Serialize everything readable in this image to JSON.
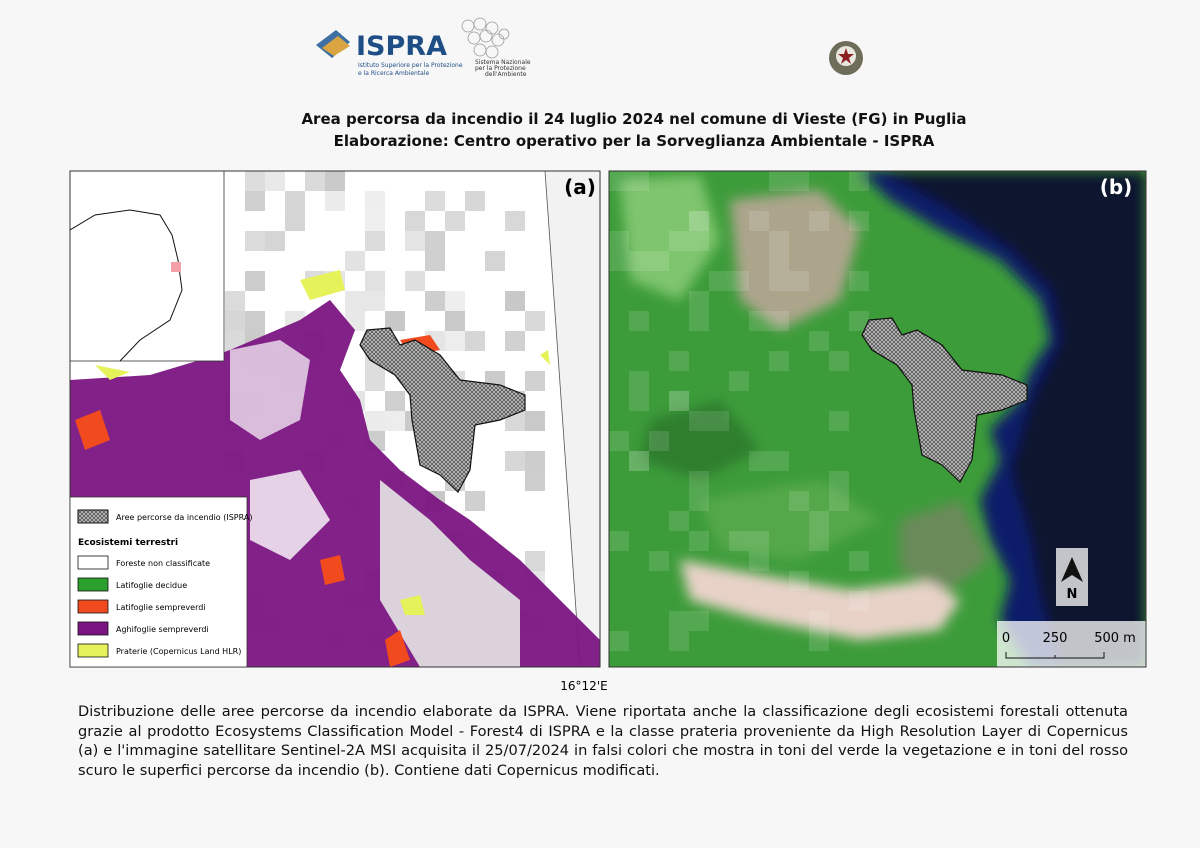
{
  "header": {
    "logo_ispra": "ISPRA",
    "logo_ispra_sub": [
      "Istituto Superiore per la Protezione",
      "e la Ricerca Ambientale"
    ],
    "logo_snpa": [
      "Sistema Nazionale",
      "per la Protezione",
      "dell'Ambiente"
    ]
  },
  "title": [
    "Area percorsa da incendio il 24 luglio 2024 nel comune di Vieste (FG) in Puglia",
    "Elaborazione: Centro operativo per la Sorveglianza Ambientale - ISPRA"
  ],
  "panels": {
    "a": "(a)",
    "b": "(b)"
  },
  "legend": {
    "burned": "Aree percorse da incendio (ISPRA)",
    "heading": "Ecosistemi terrestri",
    "items": [
      {
        "label": "Foreste non classificate",
        "color": "#ffffff"
      },
      {
        "label": "Latifoglie decidue",
        "color": "#2ca02c"
      },
      {
        "label": "Latifoglie sempreverdi",
        "color": "#f04a1e"
      },
      {
        "label": "Aghifoglie sempreverdi",
        "color": "#7b1582"
      },
      {
        "label": "Praterie (Copernicus Land HLR)",
        "color": "#e6f25a"
      }
    ]
  },
  "longitude_label": "16°12'E",
  "north": "N",
  "scale_bar": [
    0,
    250,
    {
      "value": 500,
      "label": "500 m"
    }
  ],
  "caption": "Distribuzione delle aree percorse da incendio elaborate da ISPRA. Viene riportata anche la classificazione degli ecosistemi forestali ottenuta grazie al prodotto Ecosystems Classification Model - Forest4 di ISPRA e la classe prateria proveniente da High Resolution Layer di Copernicus (a) e l'immagine satellitare Sentinel-2A MSI acquisita il 25/07/2024 in falsi colori che mostra in toni del verde la vegetazione e in toni del rosso scuro le superfici percorse da incendio (b). Contiene dati Copernicus modificati."
}
